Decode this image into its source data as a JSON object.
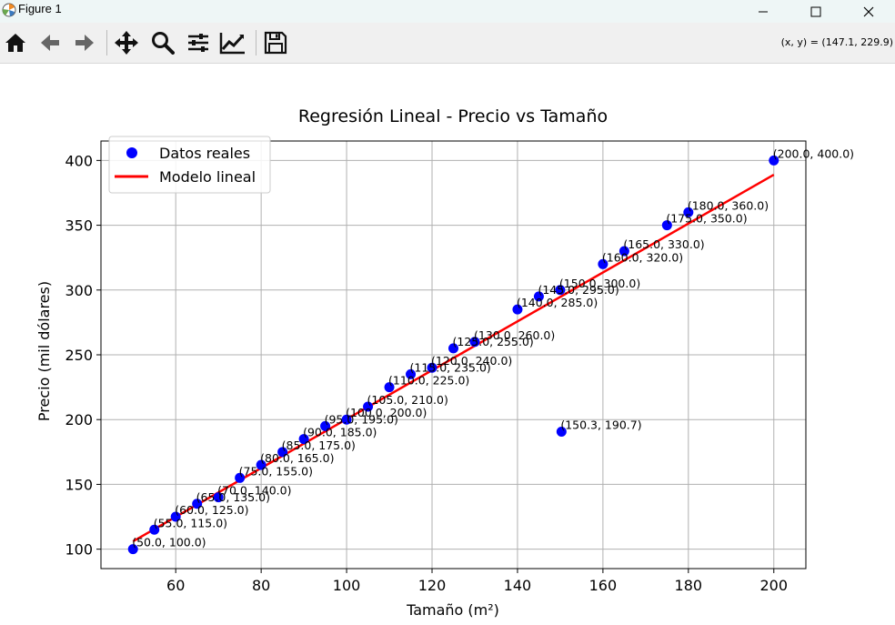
{
  "window": {
    "title": "Figure 1",
    "coords_readout": "(x, y) = (147.1, 229.9)"
  },
  "toolbar": {
    "items": [
      {
        "name": "home-icon"
      },
      {
        "name": "back-arrow-icon"
      },
      {
        "name": "forward-arrow-icon"
      },
      {
        "name": "pan-icon"
      },
      {
        "name": "zoom-icon"
      },
      {
        "name": "subplots-config-icon"
      },
      {
        "name": "edit-axis-icon"
      },
      {
        "name": "save-icon"
      }
    ]
  },
  "colors": {
    "points": "#0000ff",
    "line": "#ff0000",
    "grid": "#b0b0b0"
  },
  "chart_data": {
    "type": "scatter",
    "title": "Regresión Lineal - Precio vs Tamaño",
    "xlabel": "Tamaño (m²)",
    "ylabel": "Precio (mil dólares)",
    "xlim": [
      42.5,
      207.5
    ],
    "ylim": [
      85,
      415
    ],
    "xticks": [
      60,
      80,
      100,
      120,
      140,
      160,
      180,
      200
    ],
    "yticks": [
      100,
      150,
      200,
      250,
      300,
      350,
      400
    ],
    "grid": true,
    "legend_position": "top-left",
    "legend": [
      "Datos reales",
      "Modelo lineal"
    ],
    "points": [
      {
        "x": 50,
        "y": 100,
        "label": "(50.0, 100.0)"
      },
      {
        "x": 55,
        "y": 115,
        "label": "(55.0, 115.0)"
      },
      {
        "x": 60,
        "y": 125,
        "label": "(60.0, 125.0)"
      },
      {
        "x": 65,
        "y": 135,
        "label": "(65.0, 135.0)"
      },
      {
        "x": 70,
        "y": 140,
        "label": "(70.0, 140.0)"
      },
      {
        "x": 75,
        "y": 155,
        "label": "(75.0, 155.0)"
      },
      {
        "x": 80,
        "y": 165,
        "label": "(80.0, 165.0)"
      },
      {
        "x": 85,
        "y": 175,
        "label": "(85.0, 175.0)"
      },
      {
        "x": 90,
        "y": 185,
        "label": "(90.0, 185.0)"
      },
      {
        "x": 95,
        "y": 195,
        "label": "(95.0, 195.0)"
      },
      {
        "x": 100,
        "y": 200,
        "label": "(100.0, 200.0)"
      },
      {
        "x": 105,
        "y": 210,
        "label": "(105.0, 210.0)"
      },
      {
        "x": 110,
        "y": 225,
        "label": "(110.0, 225.0)"
      },
      {
        "x": 115,
        "y": 235,
        "label": "(115.0, 235.0)"
      },
      {
        "x": 120,
        "y": 240,
        "label": "(120.0, 240.0)"
      },
      {
        "x": 125,
        "y": 255,
        "label": "(125.0, 255.0)"
      },
      {
        "x": 130,
        "y": 260,
        "label": "(130.0, 260.0)"
      },
      {
        "x": 140,
        "y": 285,
        "label": "(140.0, 285.0)"
      },
      {
        "x": 145,
        "y": 295,
        "label": "(145.0, 295.0)"
      },
      {
        "x": 150,
        "y": 300,
        "label": "(150.0, 300.0)"
      },
      {
        "x": 160,
        "y": 320,
        "label": "(160.0, 320.0)"
      },
      {
        "x": 165,
        "y": 330,
        "label": "(165.0, 330.0)"
      },
      {
        "x": 175,
        "y": 350,
        "label": "(175.0, 350.0)"
      },
      {
        "x": 180,
        "y": 360,
        "label": "(180.0, 360.0)"
      },
      {
        "x": 200,
        "y": 400,
        "label": "(200.0, 400.0)"
      },
      {
        "x": 150.3,
        "y": 190.7,
        "label": "(150.3, 190.7)"
      }
    ],
    "regression_line": {
      "x": [
        50,
        200
      ],
      "y": [
        106,
        389
      ]
    }
  }
}
